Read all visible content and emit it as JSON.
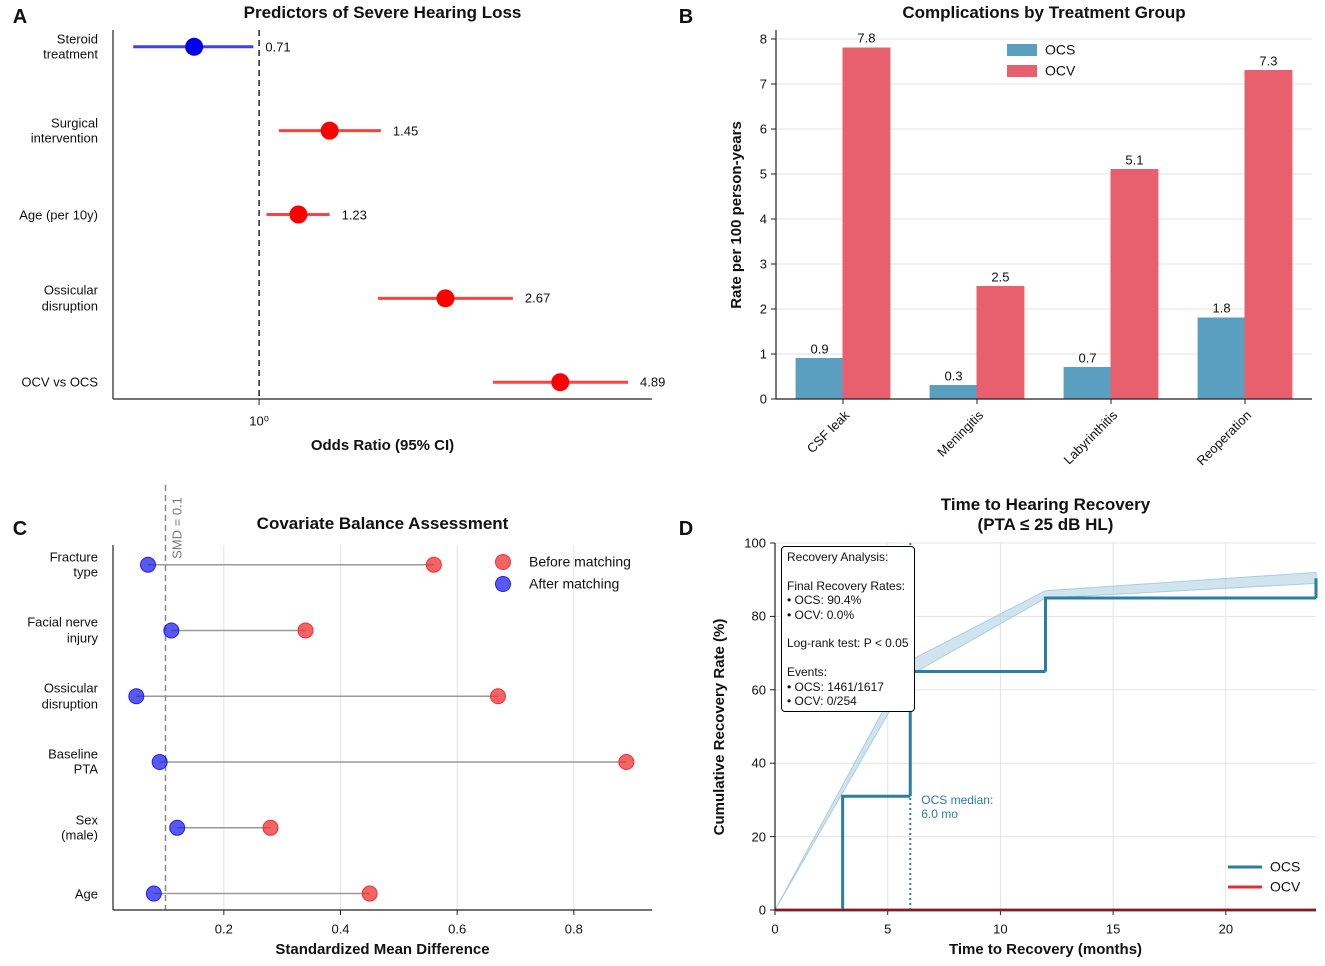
{
  "chart_data": [
    {
      "type": "forest",
      "panel_label": "A",
      "title": "Predictors of Severe Hearing Loss",
      "xlabel": "Odds Ratio (95% CI)",
      "xscale": "log",
      "xlim": [
        0.463,
        7.93
      ],
      "xticks": [
        {
          "value": 1,
          "label": "10⁰"
        }
      ],
      "reference_line": 1,
      "categories": [
        "Steroid\ntreatment",
        "Surgical\nintervention",
        "Age (per 10y)",
        "Ossicular\ndisruption",
        "OCV vs OCS"
      ],
      "values": [
        0.71,
        1.45,
        1.23,
        2.67,
        4.89
      ],
      "ci_lower": [
        0.515,
        1.11,
        1.04,
        1.87,
        3.43
      ],
      "ci_upper": [
        0.97,
        1.9,
        1.45,
        3.81,
        6.99
      ],
      "color_below": "#0000ee",
      "color_above": "#ff0000"
    },
    {
      "type": "bar",
      "panel_label": "B",
      "title": "Complications by Treatment Group",
      "ylabel": "Rate per 100 person-years",
      "categories": [
        "CSF leak",
        "Meningitis",
        "Labyrinthitis",
        "Reoperation"
      ],
      "series": [
        {
          "name": "OCS",
          "color": "#5a9ec0",
          "values": [
            0.9,
            0.3,
            0.7,
            1.8
          ]
        },
        {
          "name": "OCV",
          "color": "#e8606e",
          "values": [
            7.8,
            2.5,
            5.1,
            7.3
          ]
        }
      ],
      "ylim": [
        0,
        8.2
      ],
      "yticks": [
        0,
        1,
        2,
        3,
        4,
        5,
        6,
        7,
        8
      ],
      "grid": true,
      "legend": "upper center"
    },
    {
      "type": "dumbbell",
      "panel_label": "C",
      "title": "Covariate Balance Assessment",
      "xlabel": "Standardized Mean Difference",
      "categories": [
        "Fracture\ntype",
        "Facial nerve\ninjury",
        "Ossicular\ndisruption",
        "Baseline\nPTA",
        "Sex\n(male)",
        "Age"
      ],
      "series": [
        {
          "name": "Before matching",
          "color": "#f03030",
          "values": [
            0.56,
            0.34,
            0.67,
            0.89,
            0.28,
            0.45
          ]
        },
        {
          "name": "After matching",
          "color": "#2020ee",
          "values": [
            0.07,
            0.11,
            0.05,
            0.09,
            0.12,
            0.08
          ]
        }
      ],
      "xlim": [
        0.01,
        0.934
      ],
      "xticks": [
        0.2,
        0.4,
        0.6,
        0.8
      ],
      "threshold": 0.1,
      "threshold_label": "SMD = 0.1",
      "grid": true,
      "legend": "upper right"
    },
    {
      "type": "step",
      "panel_label": "D",
      "title": "Time to Hearing Recovery\n(PTA ≤ 25 dB HL)",
      "xlabel": "Time to Recovery (months)",
      "ylabel": "Cumulative Recovery Rate (%)",
      "series": [
        {
          "name": "OCS",
          "color": "#2a7ea6",
          "x": [
            0,
            3,
            6,
            12,
            24
          ],
          "values": [
            0,
            31,
            65,
            85,
            90.4
          ],
          "band": {
            "color": "#a9cde0",
            "x": [
              0,
              6,
              12,
              24
            ],
            "lower": [
              0,
              64,
              85,
              89
            ],
            "upper": [
              0,
              68,
              87,
              92
            ]
          }
        },
        {
          "name": "OCV",
          "color": "#d8323e",
          "x": [
            0,
            24
          ],
          "values": [
            0,
            0
          ]
        }
      ],
      "xlim": [
        0,
        24
      ],
      "ylim": [
        0,
        100
      ],
      "xticks": [
        0,
        5,
        10,
        15,
        20
      ],
      "yticks": [
        0,
        20,
        40,
        60,
        80,
        100
      ],
      "grid": true,
      "legend": "lower right",
      "median": 6,
      "median_label": "OCS median:\n6.0 mo",
      "textbox": "Recovery Analysis:\n\nFinal Recovery Rates:\n• OCS: 90.4%\n• OCV: 0.0%\n\nLog-rank test: P < 0.05\n\nEvents:\n• OCS: 1461/1617\n• OCV: 0/254"
    }
  ]
}
